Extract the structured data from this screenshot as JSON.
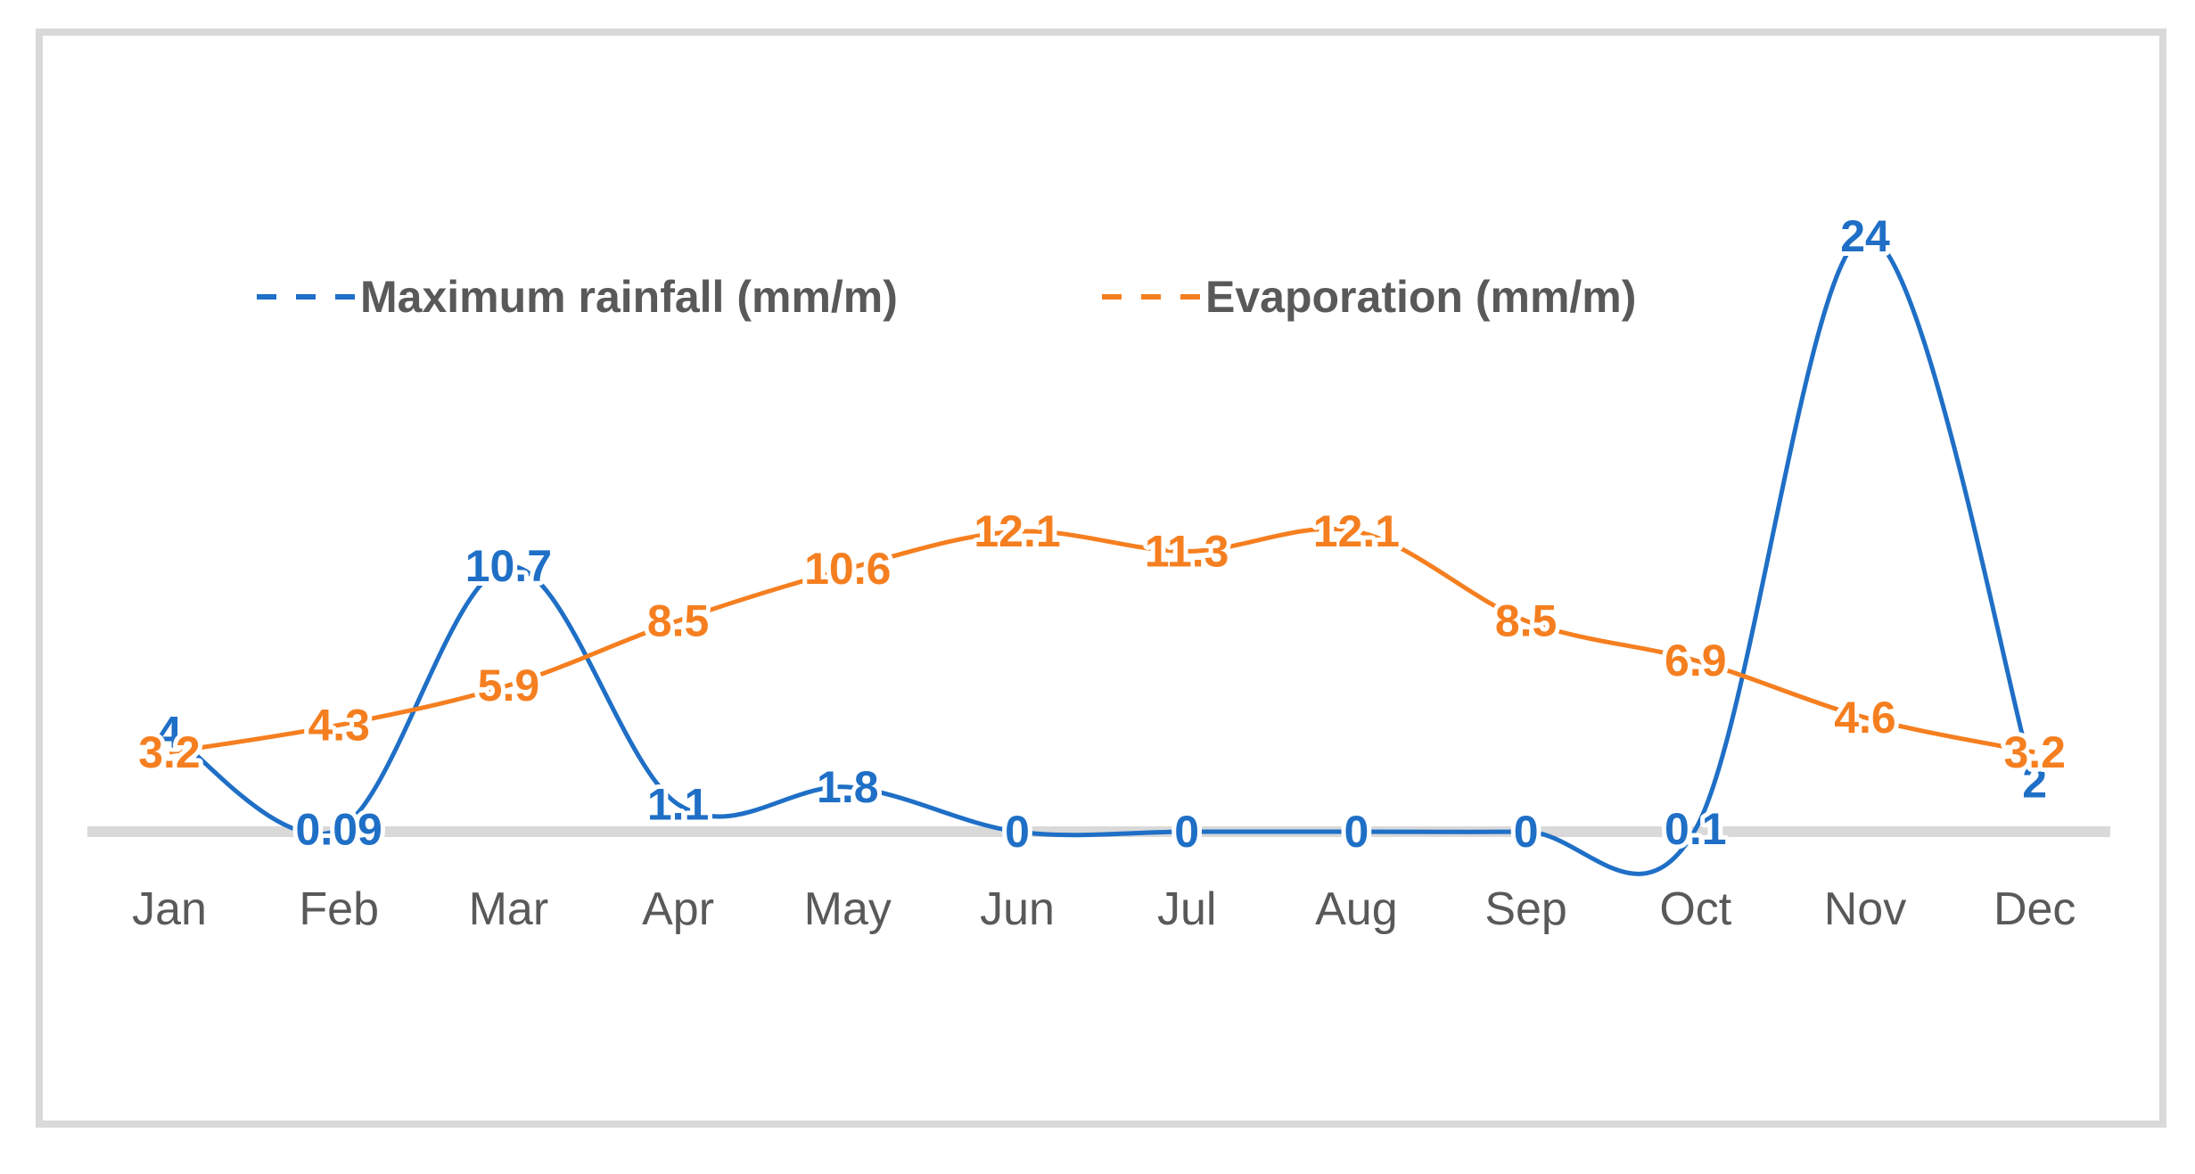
{
  "chart_data": {
    "type": "line",
    "title": "",
    "xlabel": "",
    "ylabel": "",
    "categories": [
      "Jan",
      "Feb",
      "Mar",
      "Apr",
      "May",
      "Jun",
      "Jul",
      "Aug",
      "Sep",
      "Oct",
      "Nov",
      "Dec"
    ],
    "ylim": [
      0,
      24
    ],
    "grid": false,
    "legend_position": "top",
    "series": [
      {
        "name": "Maximum rainfall (mm/m)",
        "color": "#1f6fc6",
        "values": [
          4,
          0.09,
          10.7,
          1.1,
          1.8,
          0,
          0,
          0,
          0,
          0.1,
          24,
          2
        ],
        "labels": [
          "4",
          "0.09",
          "10.7",
          "1.1",
          "1.8",
          "0",
          "0",
          "0",
          "0",
          "0.1",
          "24",
          "2"
        ]
      },
      {
        "name": "Evaporation (mm/m)",
        "color": "#f57f20",
        "values": [
          3.2,
          4.3,
          5.9,
          8.5,
          10.6,
          12.1,
          11.3,
          12.1,
          8.5,
          6.9,
          4.6,
          3.2
        ],
        "labels": [
          "3.2",
          "4.3",
          "5.9",
          "8.5",
          "10.6",
          "12.1",
          "11.3",
          "12.1",
          "8.5",
          "6.9",
          "4.6",
          "3.2"
        ]
      }
    ]
  }
}
